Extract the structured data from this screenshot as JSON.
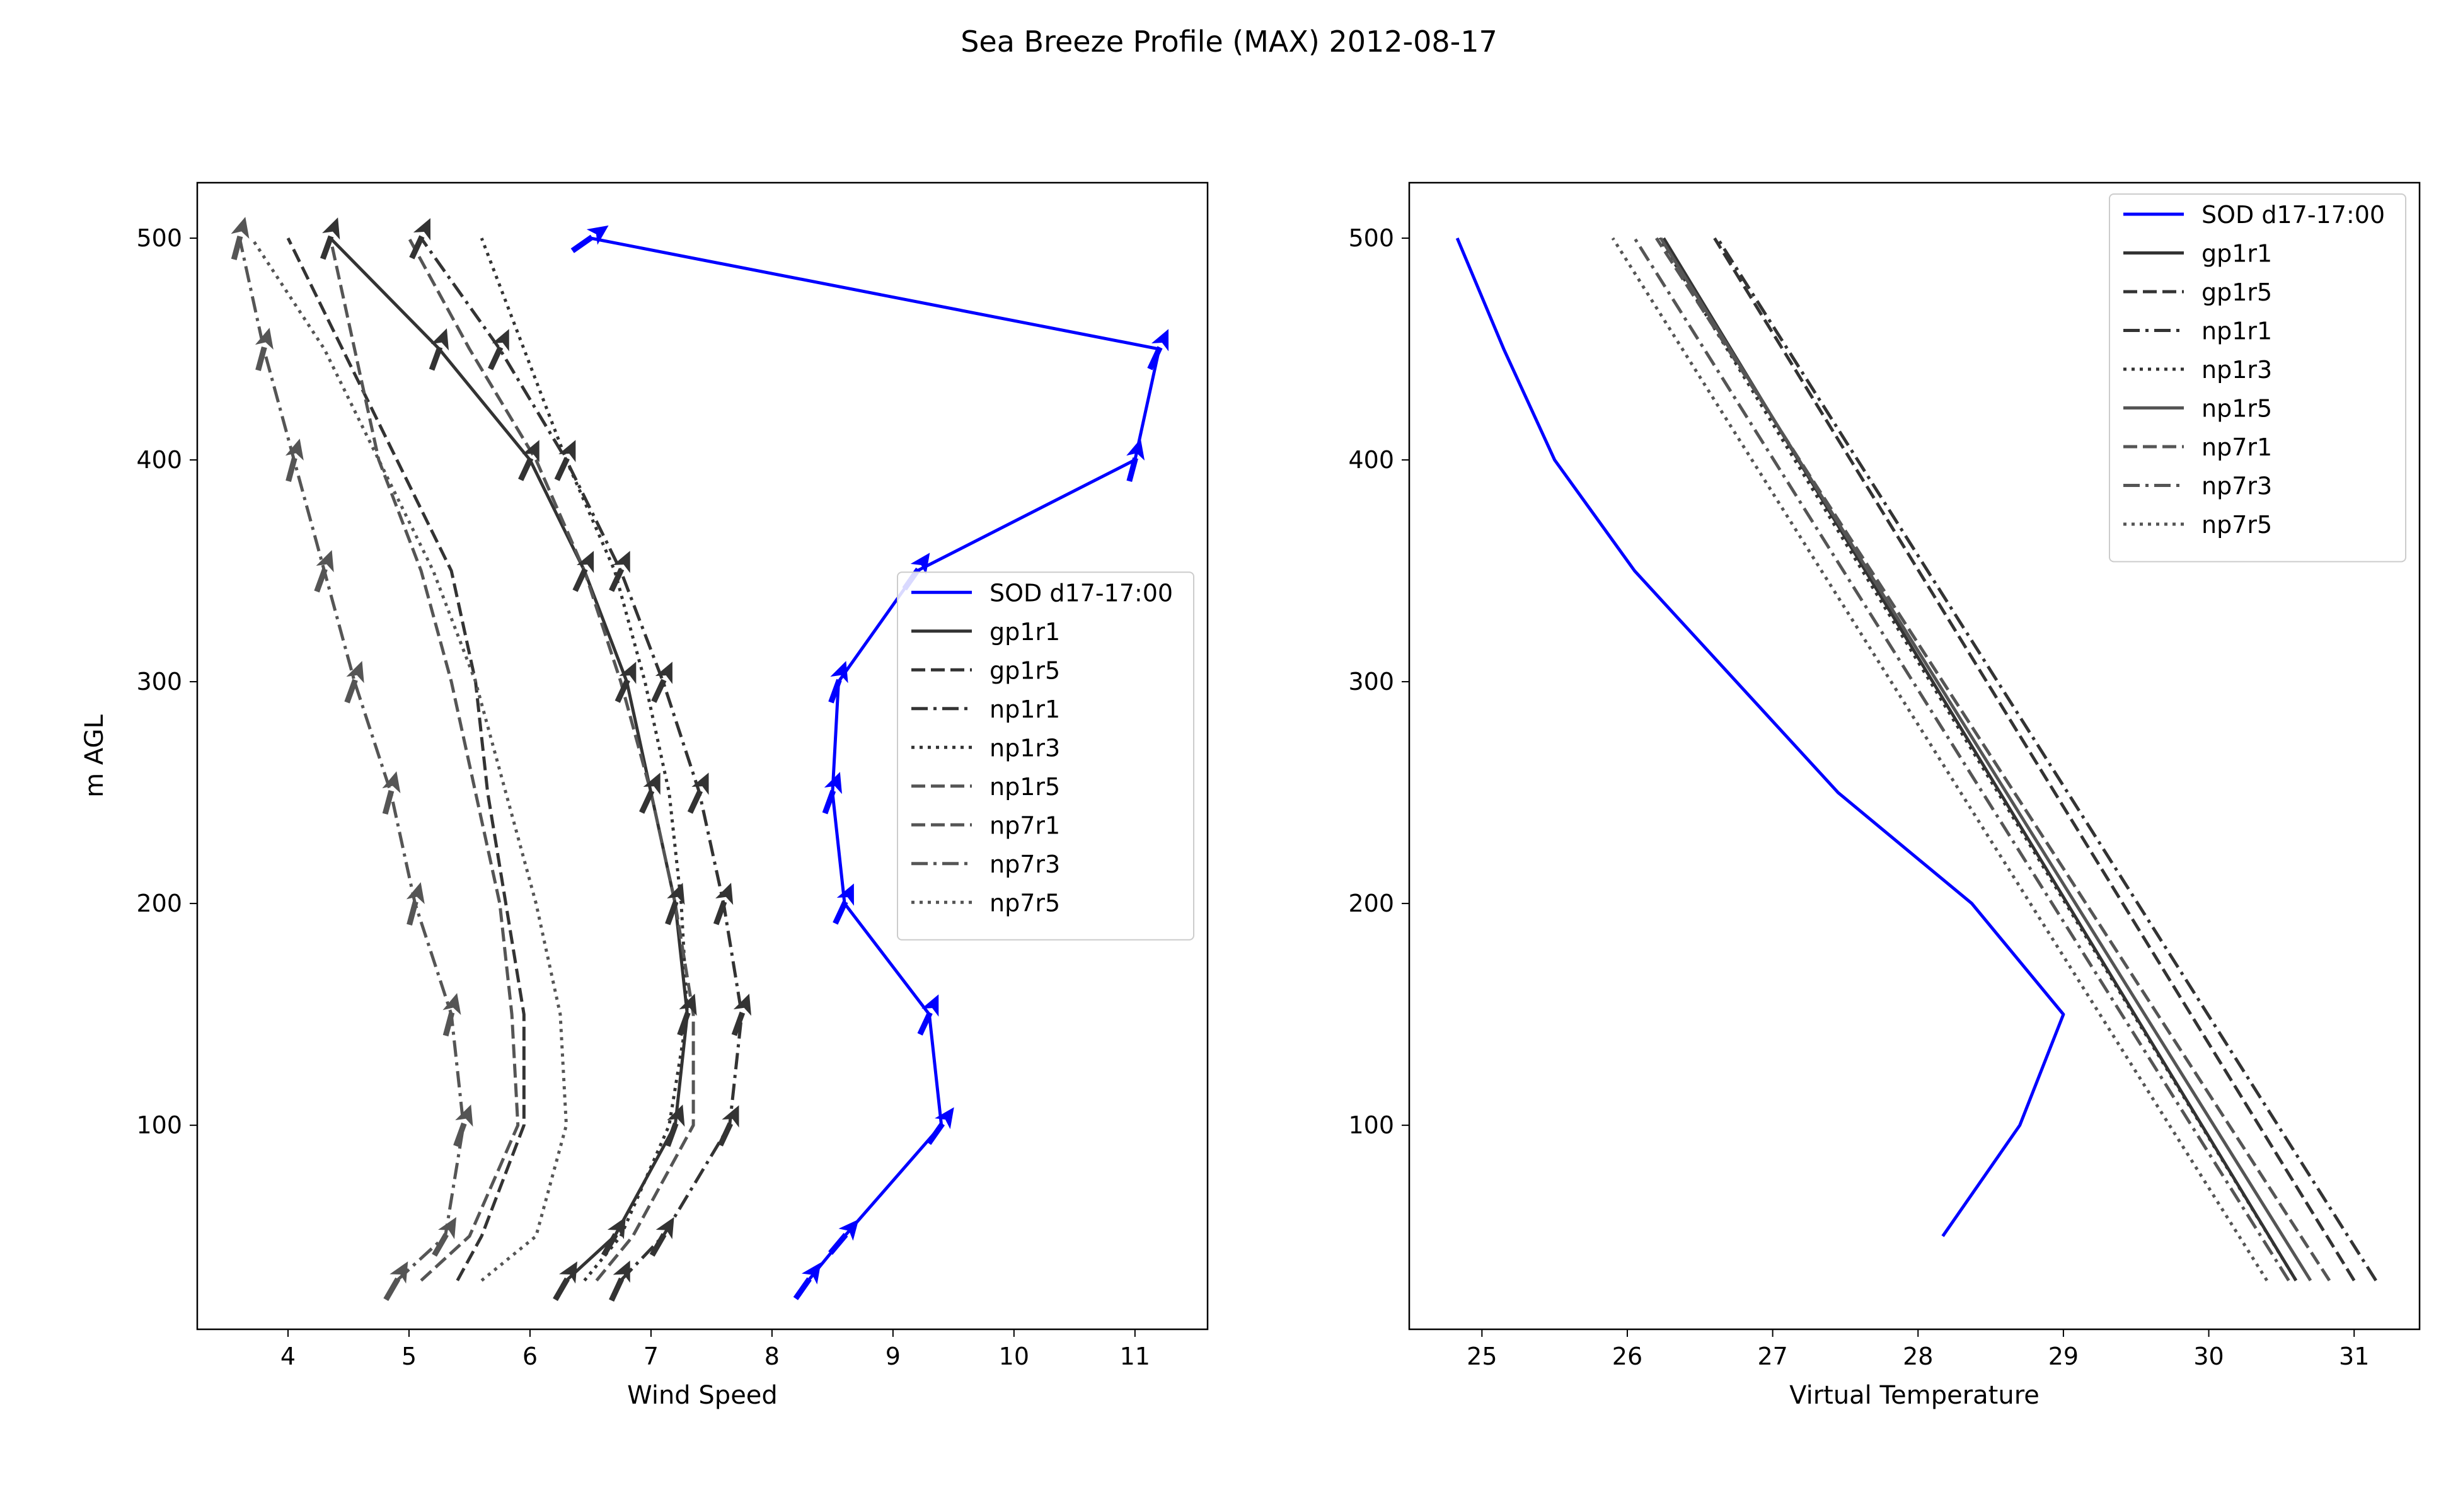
{
  "figure": {
    "title": "Sea Breeze Profile (MAX) 2012-08-17"
  },
  "chart_data": [
    {
      "type": "line",
      "panel": "left",
      "title": "",
      "xlabel": "Wind Speed",
      "ylabel": "m AGL",
      "xlim": [
        3.25,
        11.6
      ],
      "ylim": [
        8,
        525
      ],
      "xticks": [
        4,
        5,
        6,
        7,
        8,
        9,
        10,
        11
      ],
      "yticks": [
        100,
        200,
        300,
        400,
        500
      ],
      "heights": [
        30,
        50,
        100,
        150,
        200,
        250,
        300,
        350,
        400,
        450,
        500
      ],
      "legend_loc": "center right",
      "series": [
        {
          "name": "SOD d17-17:00",
          "color": "#0000ff",
          "dash": "solid",
          "y": [
            30,
            50,
            100,
            150,
            200,
            250,
            300,
            350,
            400,
            450,
            500
          ],
          "x": [
            8.3,
            8.6,
            9.4,
            9.3,
            8.6,
            8.5,
            8.55,
            9.2,
            11.0,
            11.2,
            6.5
          ],
          "dir": [
            35,
            40,
            35,
            25,
            25,
            20,
            20,
            35,
            15,
            25,
            55
          ]
        },
        {
          "name": "gp1r1",
          "color": "#333333",
          "dash": "solid",
          "y": [
            30,
            50,
            100,
            150,
            200,
            250,
            300,
            350,
            400,
            450,
            500
          ],
          "x": [
            6.3,
            6.7,
            7.2,
            7.3,
            7.2,
            7.0,
            6.8,
            6.45,
            6.0,
            5.25,
            4.35
          ],
          "dir": [
            30,
            30,
            20,
            20,
            20,
            25,
            25,
            25,
            25,
            20,
            20
          ]
        },
        {
          "name": "gp1r5",
          "color": "#333333",
          "dash": "dashed",
          "y": [
            30,
            50,
            100,
            150,
            200,
            250,
            300,
            350,
            400,
            450,
            500
          ],
          "x": [
            5.4,
            5.6,
            5.95,
            5.95,
            5.8,
            5.65,
            5.55,
            5.35,
            4.9,
            4.45,
            4.0
          ],
          "dir": null
        },
        {
          "name": "np1r1",
          "color": "#333333",
          "dash": "dashdot",
          "y": [
            30,
            50,
            100,
            150,
            200,
            250,
            300,
            350,
            400,
            450,
            500
          ],
          "x": [
            6.75,
            7.1,
            7.65,
            7.75,
            7.6,
            7.4,
            7.1,
            6.75,
            6.3,
            5.75,
            5.1
          ],
          "dir": [
            25,
            30,
            25,
            20,
            20,
            25,
            25,
            25,
            25,
            25,
            25
          ]
        },
        {
          "name": "np1r3",
          "color": "#333333",
          "dash": "dotted",
          "y": [
            30,
            50,
            100,
            150,
            200,
            250,
            300,
            350,
            400,
            450,
            500
          ],
          "x": [
            6.45,
            6.75,
            7.15,
            7.3,
            7.25,
            7.15,
            6.95,
            6.7,
            6.3,
            5.95,
            5.6
          ],
          "dir": null
        },
        {
          "name": "np1r5",
          "color": "#555555",
          "dash": "dashed",
          "y": [
            30,
            50,
            100,
            150,
            200,
            250,
            300,
            350,
            400,
            450,
            500
          ],
          "x": [
            6.55,
            6.85,
            7.35,
            7.35,
            7.2,
            7.0,
            6.75,
            6.45,
            6.05,
            5.5,
            5.0
          ],
          "dir": null
        },
        {
          "name": "np7r1",
          "color": "#555555",
          "dash": "dashed",
          "y": [
            30,
            50,
            100,
            150,
            200,
            250,
            300,
            350,
            400,
            450,
            500
          ],
          "x": [
            5.1,
            5.5,
            5.9,
            5.85,
            5.75,
            5.55,
            5.35,
            5.1,
            4.75,
            4.55,
            4.35
          ],
          "dir": null
        },
        {
          "name": "np7r3",
          "color": "#555555",
          "dash": "dashdot",
          "y": [
            30,
            50,
            100,
            150,
            200,
            250,
            300,
            350,
            400,
            450,
            500
          ],
          "x": [
            4.9,
            5.3,
            5.45,
            5.35,
            5.05,
            4.85,
            4.55,
            4.3,
            4.05,
            3.8,
            3.6
          ],
          "dir": [
            30,
            30,
            20,
            15,
            15,
            15,
            20,
            20,
            15,
            15,
            15
          ]
        },
        {
          "name": "np7r5",
          "color": "#555555",
          "dash": "dotted",
          "y": [
            30,
            50,
            100,
            150,
            200,
            250,
            300,
            350,
            400,
            450,
            500
          ],
          "x": [
            5.6,
            6.05,
            6.3,
            6.25,
            6.05,
            5.8,
            5.55,
            5.2,
            4.75,
            4.3,
            3.7
          ],
          "dir": null
        }
      ]
    },
    {
      "type": "line",
      "panel": "right",
      "title": "",
      "xlabel": "Virtual Temperature",
      "ylabel": "",
      "xlim": [
        24.5,
        31.45
      ],
      "ylim": [
        8,
        525
      ],
      "xticks": [
        25,
        26,
        27,
        28,
        29,
        30,
        31
      ],
      "yticks": [
        100,
        200,
        300,
        400,
        500
      ],
      "legend_loc": "upper right",
      "series": [
        {
          "name": "SOD d17-17:00",
          "color": "#0000ff",
          "dash": "solid",
          "y": [
            50,
            100,
            150,
            200,
            250,
            300,
            350,
            400,
            450,
            500
          ],
          "x": [
            28.17,
            28.7,
            29.0,
            28.37,
            27.45,
            26.75,
            26.05,
            25.5,
            25.15,
            24.83
          ]
        },
        {
          "name": "gp1r1",
          "color": "#333333",
          "dash": "solid",
          "y": [
            30,
            500
          ],
          "x": [
            30.6,
            26.25
          ]
        },
        {
          "name": "gp1r5",
          "color": "#333333",
          "dash": "dashed",
          "y": [
            30,
            500
          ],
          "x": [
            31.0,
            26.6
          ]
        },
        {
          "name": "np1r1",
          "color": "#333333",
          "dash": "dashdot",
          "y": [
            30,
            500
          ],
          "x": [
            31.15,
            26.62
          ]
        },
        {
          "name": "np1r3",
          "color": "#333333",
          "dash": "dotted",
          "y": [
            30,
            500
          ],
          "x": [
            30.6,
            26.22
          ]
        },
        {
          "name": "np1r5",
          "color": "#555555",
          "dash": "solid",
          "y": [
            30,
            500
          ],
          "x": [
            30.7,
            26.23
          ]
        },
        {
          "name": "np7r1",
          "color": "#555555",
          "dash": "dashed",
          "y": [
            30,
            500
          ],
          "x": [
            30.83,
            26.2
          ]
        },
        {
          "name": "np7r3",
          "color": "#555555",
          "dash": "dashdot",
          "y": [
            30,
            500
          ],
          "x": [
            30.55,
            26.05
          ]
        },
        {
          "name": "np7r5",
          "color": "#555555",
          "dash": "dotted",
          "y": [
            30,
            500
          ],
          "x": [
            30.4,
            25.9
          ]
        }
      ]
    }
  ]
}
